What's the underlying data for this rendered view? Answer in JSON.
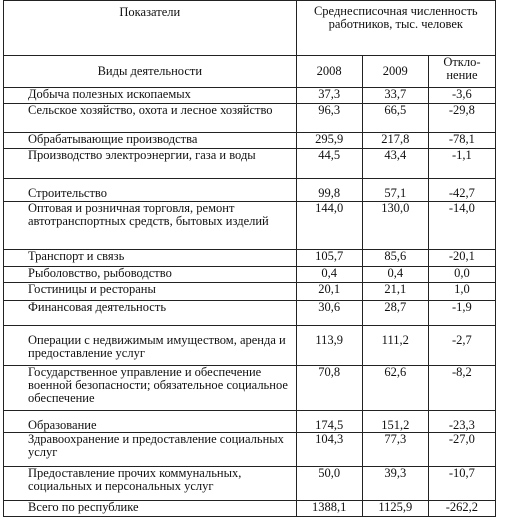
{
  "header": {
    "indicators": "Показатели",
    "group_title": "Среднесписочная численность работников, тыс. человек",
    "activities": "Виды деятельности",
    "y2008": "2008",
    "y2009": "2009",
    "deviation": "Откло-нение"
  },
  "rows": [
    {
      "name": "Добыча полезных ископаемых",
      "v2008": "37,3",
      "v2009": "33,7",
      "dev": "-3,6"
    },
    {
      "name": "Сельское хозяйство, охота и лесное хозяйство",
      "v2008": "96,3",
      "v2009": "66,5",
      "dev": "-29,8"
    },
    {
      "name": "Обрабатывающие производства",
      "v2008": "295,9",
      "v2009": "217,8",
      "dev": "-78,1"
    },
    {
      "name": "Производство электроэнергии, газа и воды",
      "v2008": "44,5",
      "v2009": "43,4",
      "dev": "-1,1"
    },
    {
      "name": "Строительство",
      "v2008": "99,8",
      "v2009": "57,1",
      "dev": "-42,7"
    },
    {
      "name": "Оптовая и розничная торговля, ремонт автотранспортных средств, бытовых изделий",
      "v2008": "144,0",
      "v2009": "130,0",
      "dev": "-14,0"
    },
    {
      "name": "Транспорт и связь",
      "v2008": "105,7",
      "v2009": "85,6",
      "dev": "-20,1"
    },
    {
      "name": "Рыболовство, рыбоводство",
      "v2008": "0,4",
      "v2009": "0,4",
      "dev": "0,0"
    },
    {
      "name": "Гостиницы и рестораны",
      "v2008": "20,1",
      "v2009": "21,1",
      "dev": "1,0"
    },
    {
      "name": "Финансовая деятельность",
      "v2008": "30,6",
      "v2009": "28,7",
      "dev": "-1,9"
    },
    {
      "name": "Операции с недвижимым имуществом, аренда и предоставление услуг",
      "v2008": "113,9",
      "v2009": "111,2",
      "dev": "-2,7"
    },
    {
      "name": "Государственное управление и обеспечение военной безопасности; обязательное социальное обеспечение",
      "v2008": "70,8",
      "v2009": "62,6",
      "dev": "-8,2"
    },
    {
      "name": "Образование",
      "v2008": "174,5",
      "v2009": "151,2",
      "dev": "-23,3"
    },
    {
      "name": "Здравоохранение и предоставление социальных услуг",
      "v2008": "104,3",
      "v2009": "77,3",
      "dev": "-27,0"
    },
    {
      "name": "Предоставление прочих коммунальных, социальных и персональных услуг",
      "v2008": "50,0",
      "v2009": "39,3",
      "dev": "-10,7"
    },
    {
      "name": "Всего по республике",
      "v2008": "1388,1",
      "v2009": "1125,9",
      "dev": "-262,2"
    }
  ]
}
